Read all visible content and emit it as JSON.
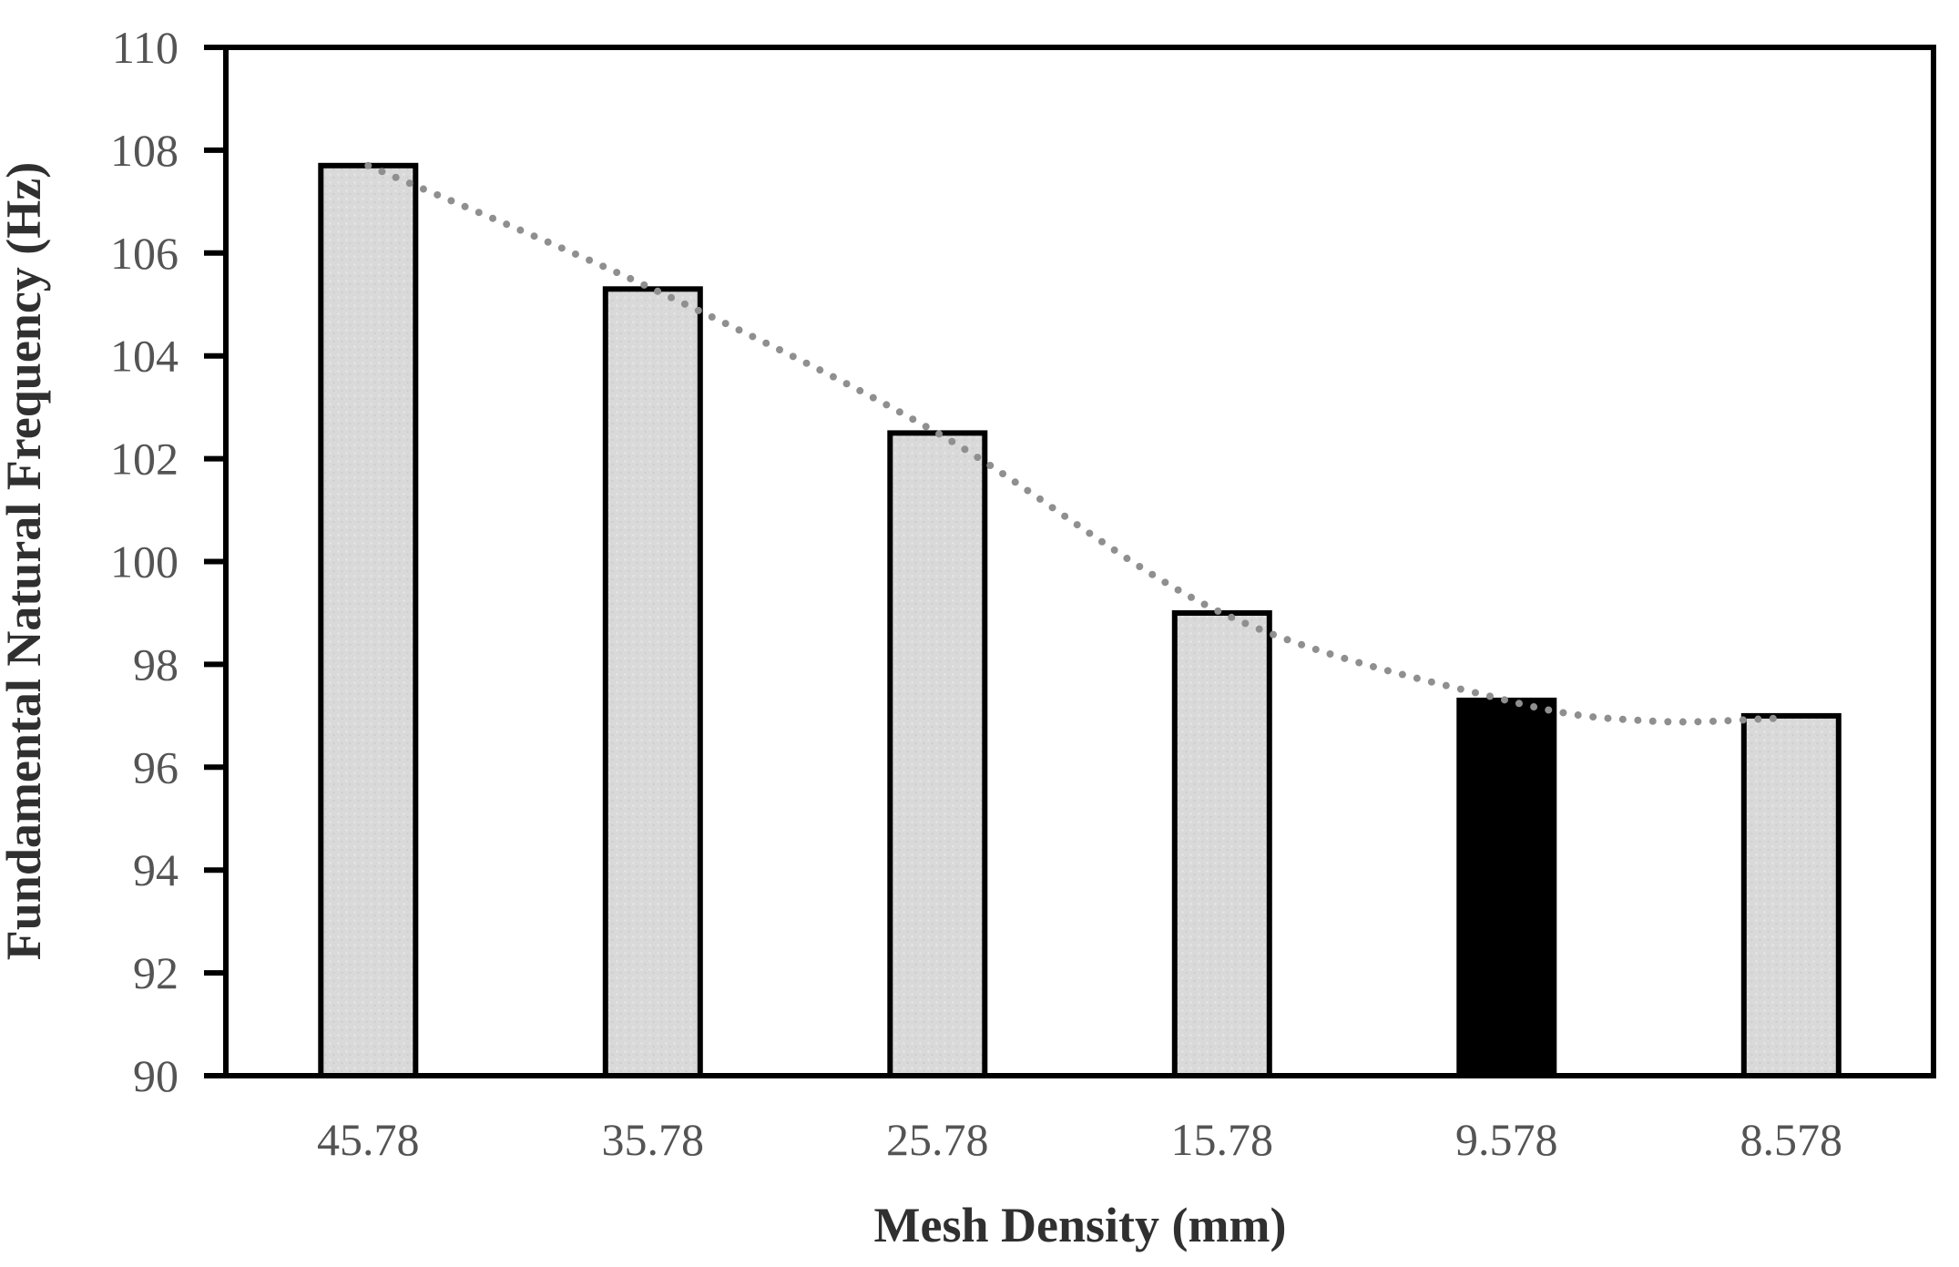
{
  "chart_data": {
    "type": "bar",
    "title": "",
    "xlabel": "Mesh Density (mm)",
    "ylabel": "Fundamental Natural Frequency (Hz)",
    "categories": [
      "45.78",
      "35.78",
      "25.78",
      "15.78",
      "9.578",
      "8.578"
    ],
    "values": [
      107.7,
      105.3,
      102.5,
      99.0,
      97.3,
      97.0
    ],
    "highlight_index": 4,
    "ylim": [
      90,
      110
    ],
    "ytick_step": 2,
    "ytick_labels": [
      "110",
      "108",
      "106",
      "104",
      "102",
      "100",
      "98",
      "96",
      "94",
      "92",
      "90"
    ],
    "grid": false,
    "legend": "none",
    "trendline": {
      "style": "dotted",
      "points": [
        [
          1,
          107.7
        ],
        [
          2,
          105.3
        ],
        [
          3,
          102.5
        ],
        [
          4,
          99.0
        ],
        [
          5,
          97.3
        ],
        [
          5.5,
          96.9
        ],
        [
          5.95,
          96.95
        ]
      ]
    },
    "colors": {
      "bar_fill": "#d9d9d9",
      "bar_fill_speck_light": "#e6e6e6",
      "bar_fill_speck_dark": "#cdcdcd",
      "bar_border": "#000000",
      "highlight_bar_fill": "#000000",
      "trendline": "#8f8f8f",
      "axis": "#000000",
      "tick_label": "#545454",
      "axis_title": "#303030",
      "background": "#ffffff"
    }
  }
}
